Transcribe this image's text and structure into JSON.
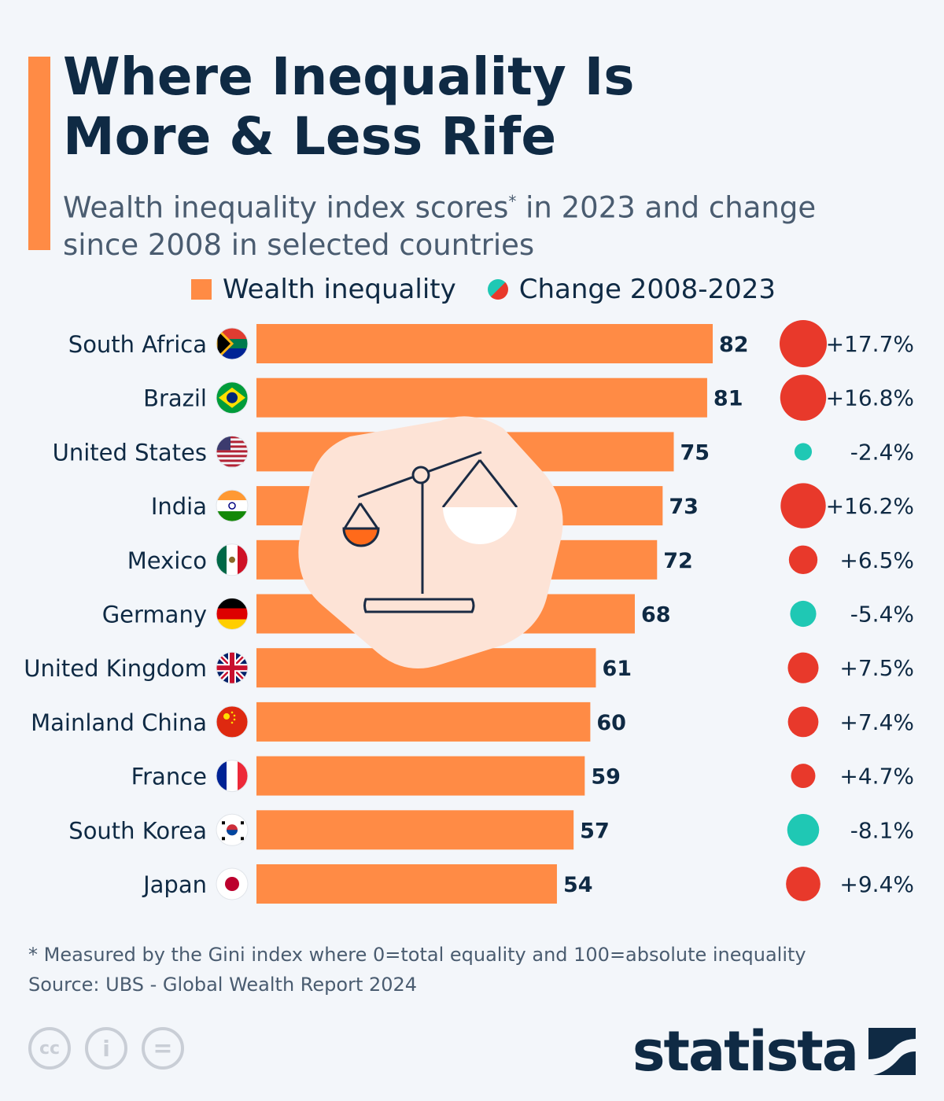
{
  "title": "Where Inequality Is More & Less Rife",
  "subtitle": "Wealth inequality index scores",
  "subtitle_mark": "*",
  "subtitle_rest": " in 2023 and change since 2008 in selected countries",
  "legend": {
    "bar": "Wealth inequality",
    "circle": "Change 2008-2023"
  },
  "colors": {
    "bar": "#ff8b45",
    "increase": "#e8392b",
    "decrease": "#1fc8b4",
    "title": "#0f2a44"
  },
  "chart_data": {
    "type": "bar",
    "orientation": "horizontal",
    "categories": [
      "South Africa",
      "Brazil",
      "United States",
      "India",
      "Mexico",
      "Germany",
      "United Kingdom",
      "Mainland China",
      "France",
      "South Korea",
      "Japan"
    ],
    "series": [
      {
        "name": "Wealth inequality",
        "values": [
          82,
          81,
          75,
          73,
          72,
          68,
          61,
          60,
          59,
          57,
          54
        ]
      },
      {
        "name": "Change 2008-2023",
        "values": [
          17.7,
          16.8,
          -2.4,
          16.2,
          6.5,
          -5.4,
          7.5,
          7.4,
          4.7,
          -8.1,
          9.4
        ],
        "labels": [
          "+17.7%",
          "+16.8%",
          "-2.4%",
          "+16.2%",
          "+6.5%",
          "-5.4%",
          "+7.5%",
          "+7.4%",
          "+4.7%",
          "-8.1%",
          "+9.4%"
        ]
      }
    ],
    "flags": [
      "south-africa-flag",
      "brazil-flag",
      "usa-flag",
      "india-flag",
      "mexico-flag",
      "germany-flag",
      "uk-flag",
      "china-flag",
      "france-flag",
      "south-korea-flag",
      "japan-flag"
    ]
  },
  "footer": {
    "note": "* Measured by the Gini index where 0=total equality and 100=absolute inequality",
    "source": "Source: UBS - Global Wealth Report 2024"
  },
  "license_icons": [
    "cc-icon",
    "attribution-icon",
    "no-derivatives-icon"
  ],
  "license_text": {
    "cc": "cc",
    "by": "i",
    "nd": "="
  },
  "brand": "statista"
}
